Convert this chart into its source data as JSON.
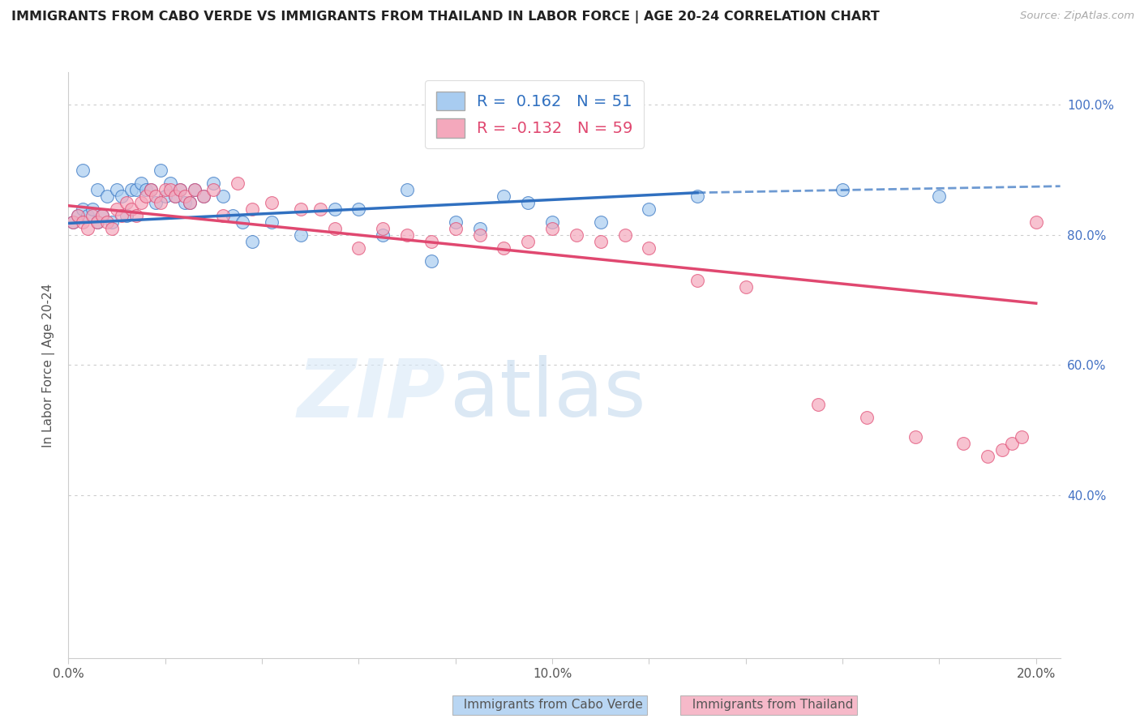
{
  "title": "IMMIGRANTS FROM CABO VERDE VS IMMIGRANTS FROM THAILAND IN LABOR FORCE | AGE 20-24 CORRELATION CHART",
  "source": "Source: ZipAtlas.com",
  "ylabel": "In Labor Force | Age 20-24",
  "cabo_verde_R": 0.162,
  "cabo_verde_N": 51,
  "thailand_R": -0.132,
  "thailand_N": 59,
  "cabo_verde_color": "#A8CCF0",
  "thailand_color": "#F4A8BC",
  "cabo_verde_line_color": "#3070C0",
  "thailand_line_color": "#E04870",
  "cabo_verde_x": [
    0.001,
    0.002,
    0.003,
    0.003,
    0.004,
    0.005,
    0.006,
    0.006,
    0.007,
    0.008,
    0.009,
    0.01,
    0.011,
    0.012,
    0.013,
    0.014,
    0.015,
    0.016,
    0.017,
    0.018,
    0.019,
    0.02,
    0.021,
    0.022,
    0.023,
    0.024,
    0.025,
    0.026,
    0.028,
    0.03,
    0.032,
    0.034,
    0.036,
    0.038,
    0.042,
    0.048,
    0.055,
    0.06,
    0.065,
    0.07,
    0.075,
    0.08,
    0.085,
    0.09,
    0.095,
    0.1,
    0.11,
    0.12,
    0.13,
    0.16,
    0.18
  ],
  "cabo_verde_y": [
    0.82,
    0.83,
    0.84,
    0.9,
    0.83,
    0.84,
    0.82,
    0.87,
    0.83,
    0.86,
    0.82,
    0.87,
    0.86,
    0.83,
    0.87,
    0.87,
    0.88,
    0.87,
    0.87,
    0.85,
    0.9,
    0.86,
    0.88,
    0.86,
    0.87,
    0.85,
    0.85,
    0.87,
    0.86,
    0.88,
    0.86,
    0.83,
    0.82,
    0.79,
    0.82,
    0.8,
    0.84,
    0.84,
    0.8,
    0.87,
    0.76,
    0.82,
    0.81,
    0.86,
    0.85,
    0.82,
    0.82,
    0.84,
    0.86,
    0.87,
    0.86
  ],
  "thailand_x": [
    0.001,
    0.002,
    0.003,
    0.004,
    0.005,
    0.006,
    0.007,
    0.008,
    0.009,
    0.01,
    0.011,
    0.012,
    0.013,
    0.014,
    0.015,
    0.016,
    0.017,
    0.018,
    0.019,
    0.02,
    0.021,
    0.022,
    0.023,
    0.024,
    0.025,
    0.026,
    0.028,
    0.03,
    0.032,
    0.035,
    0.038,
    0.042,
    0.048,
    0.052,
    0.055,
    0.06,
    0.065,
    0.07,
    0.075,
    0.08,
    0.085,
    0.09,
    0.095,
    0.1,
    0.105,
    0.11,
    0.115,
    0.12,
    0.13,
    0.14,
    0.155,
    0.165,
    0.175,
    0.185,
    0.19,
    0.193,
    0.195,
    0.197,
    0.2
  ],
  "thailand_y": [
    0.82,
    0.83,
    0.82,
    0.81,
    0.83,
    0.82,
    0.83,
    0.82,
    0.81,
    0.84,
    0.83,
    0.85,
    0.84,
    0.83,
    0.85,
    0.86,
    0.87,
    0.86,
    0.85,
    0.87,
    0.87,
    0.86,
    0.87,
    0.86,
    0.85,
    0.87,
    0.86,
    0.87,
    0.83,
    0.88,
    0.84,
    0.85,
    0.84,
    0.84,
    0.81,
    0.78,
    0.81,
    0.8,
    0.79,
    0.81,
    0.8,
    0.78,
    0.79,
    0.81,
    0.8,
    0.79,
    0.8,
    0.78,
    0.73,
    0.72,
    0.54,
    0.52,
    0.49,
    0.48,
    0.46,
    0.47,
    0.48,
    0.49,
    0.82
  ],
  "xlim": [
    0.0,
    0.205
  ],
  "ylim": [
    0.15,
    1.05
  ],
  "cabo_verde_line_x0": 0.0,
  "cabo_verde_line_x1": 0.13,
  "cabo_verde_line_xdash0": 0.13,
  "cabo_verde_line_xdash1": 0.205,
  "cabo_verde_line_y0": 0.818,
  "cabo_verde_line_y1": 0.865,
  "cabo_verde_line_ydash1": 0.875,
  "thailand_line_x0": 0.0,
  "thailand_line_x1": 0.2,
  "thailand_line_y0": 0.845,
  "thailand_line_y1": 0.695
}
